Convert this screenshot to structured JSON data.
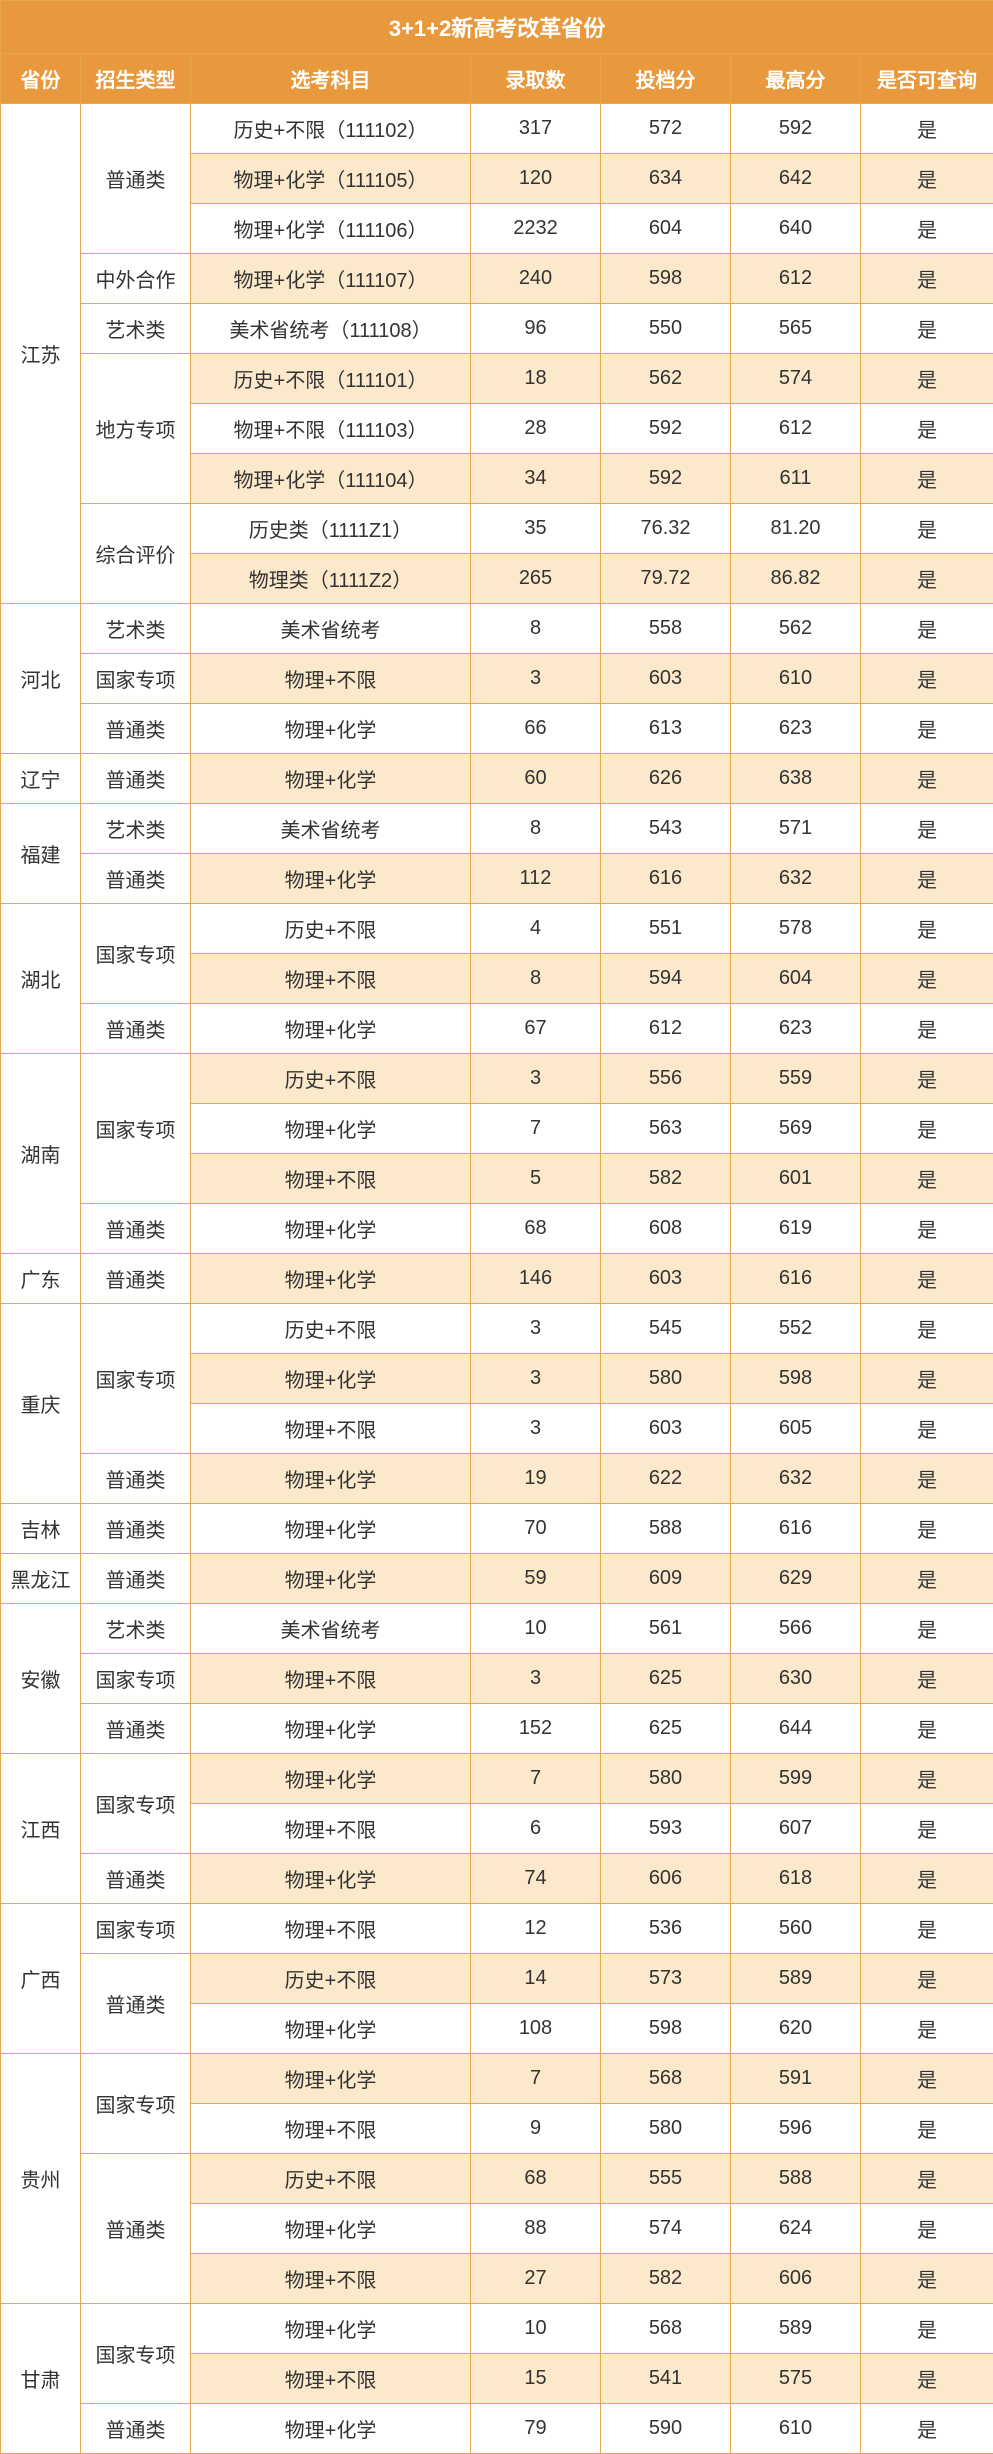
{
  "title": "3+1+2新高考改革省份",
  "headers": [
    "省份",
    "招生类型",
    "选考科目",
    "录取数",
    "投档分",
    "最高分",
    "是否可查询"
  ],
  "colors": {
    "header_bg": "#e8983d",
    "header_text": "#ffffff",
    "border": "#e8a84a",
    "row_white": "#ffffff",
    "row_alt": "#fce9cb",
    "text": "#333333"
  },
  "rows": [
    {
      "province": "江苏",
      "province_span": 10,
      "type": "普通类",
      "type_span": 3,
      "subject": "历史+不限（111102）",
      "admit": "317",
      "score1": "572",
      "score2": "592",
      "query": "是",
      "alt": false
    },
    {
      "subject": "物理+化学（111105）",
      "admit": "120",
      "score1": "634",
      "score2": "642",
      "query": "是",
      "alt": true
    },
    {
      "subject": "物理+化学（111106）",
      "admit": "2232",
      "score1": "604",
      "score2": "640",
      "query": "是",
      "alt": false
    },
    {
      "type": "中外合作",
      "type_span": 1,
      "subject": "物理+化学（111107）",
      "admit": "240",
      "score1": "598",
      "score2": "612",
      "query": "是",
      "alt": true
    },
    {
      "type": "艺术类",
      "type_span": 1,
      "subject": "美术省统考（111108）",
      "admit": "96",
      "score1": "550",
      "score2": "565",
      "query": "是",
      "alt": false
    },
    {
      "type": "地方专项",
      "type_span": 3,
      "subject": "历史+不限（111101）",
      "admit": "18",
      "score1": "562",
      "score2": "574",
      "query": "是",
      "alt": true
    },
    {
      "subject": "物理+不限（111103）",
      "admit": "28",
      "score1": "592",
      "score2": "612",
      "query": "是",
      "alt": false
    },
    {
      "subject": "物理+化学（111104）",
      "admit": "34",
      "score1": "592",
      "score2": "611",
      "query": "是",
      "alt": true
    },
    {
      "type": "综合评价",
      "type_span": 2,
      "subject": "历史类（1111Z1）",
      "admit": "35",
      "score1": "76.32",
      "score2": "81.20",
      "query": "是",
      "alt": false
    },
    {
      "subject": "物理类（1111Z2）",
      "admit": "265",
      "score1": "79.72",
      "score2": "86.82",
      "query": "是",
      "alt": true
    },
    {
      "province": "河北",
      "province_span": 3,
      "type": "艺术类",
      "type_span": 1,
      "subject": "美术省统考",
      "admit": "8",
      "score1": "558",
      "score2": "562",
      "query": "是",
      "alt": false
    },
    {
      "type": "国家专项",
      "type_span": 1,
      "subject": "物理+不限",
      "admit": "3",
      "score1": "603",
      "score2": "610",
      "query": "是",
      "alt": true
    },
    {
      "type": "普通类",
      "type_span": 1,
      "subject": "物理+化学",
      "admit": "66",
      "score1": "613",
      "score2": "623",
      "query": "是",
      "alt": false
    },
    {
      "province": "辽宁",
      "province_span": 1,
      "type": "普通类",
      "type_span": 1,
      "subject": "物理+化学",
      "admit": "60",
      "score1": "626",
      "score2": "638",
      "query": "是",
      "alt": true
    },
    {
      "province": "福建",
      "province_span": 2,
      "type": "艺术类",
      "type_span": 1,
      "subject": "美术省统考",
      "admit": "8",
      "score1": "543",
      "score2": "571",
      "query": "是",
      "alt": false
    },
    {
      "type": "普通类",
      "type_span": 1,
      "subject": "物理+化学",
      "admit": "112",
      "score1": "616",
      "score2": "632",
      "query": "是",
      "alt": true
    },
    {
      "province": "湖北",
      "province_span": 3,
      "type": "国家专项",
      "type_span": 2,
      "subject": "历史+不限",
      "admit": "4",
      "score1": "551",
      "score2": "578",
      "query": "是",
      "alt": false
    },
    {
      "subject": "物理+不限",
      "admit": "8",
      "score1": "594",
      "score2": "604",
      "query": "是",
      "alt": true
    },
    {
      "type": "普通类",
      "type_span": 1,
      "subject": "物理+化学",
      "admit": "67",
      "score1": "612",
      "score2": "623",
      "query": "是",
      "alt": false
    },
    {
      "province": "湖南",
      "province_span": 4,
      "type": "国家专项",
      "type_span": 3,
      "subject": "历史+不限",
      "admit": "3",
      "score1": "556",
      "score2": "559",
      "query": "是",
      "alt": true
    },
    {
      "subject": "物理+化学",
      "admit": "7",
      "score1": "563",
      "score2": "569",
      "query": "是",
      "alt": false
    },
    {
      "subject": "物理+不限",
      "admit": "5",
      "score1": "582",
      "score2": "601",
      "query": "是",
      "alt": true
    },
    {
      "type": "普通类",
      "type_span": 1,
      "subject": "物理+化学",
      "admit": "68",
      "score1": "608",
      "score2": "619",
      "query": "是",
      "alt": false
    },
    {
      "province": "广东",
      "province_span": 1,
      "type": "普通类",
      "type_span": 1,
      "subject": "物理+化学",
      "admit": "146",
      "score1": "603",
      "score2": "616",
      "query": "是",
      "alt": true
    },
    {
      "province": "重庆",
      "province_span": 4,
      "type": "国家专项",
      "type_span": 3,
      "subject": "历史+不限",
      "admit": "3",
      "score1": "545",
      "score2": "552",
      "query": "是",
      "alt": false
    },
    {
      "subject": "物理+化学",
      "admit": "3",
      "score1": "580",
      "score2": "598",
      "query": "是",
      "alt": true
    },
    {
      "subject": "物理+不限",
      "admit": "3",
      "score1": "603",
      "score2": "605",
      "query": "是",
      "alt": false
    },
    {
      "type": "普通类",
      "type_span": 1,
      "subject": "物理+化学",
      "admit": "19",
      "score1": "622",
      "score2": "632",
      "query": "是",
      "alt": true
    },
    {
      "province": "吉林",
      "province_span": 1,
      "type": "普通类",
      "type_span": 1,
      "subject": "物理+化学",
      "admit": "70",
      "score1": "588",
      "score2": "616",
      "query": "是",
      "alt": false
    },
    {
      "province": "黑龙江",
      "province_span": 1,
      "type": "普通类",
      "type_span": 1,
      "subject": "物理+化学",
      "admit": "59",
      "score1": "609",
      "score2": "629",
      "query": "是",
      "alt": true
    },
    {
      "province": "安徽",
      "province_span": 3,
      "type": "艺术类",
      "type_span": 1,
      "subject": "美术省统考",
      "admit": "10",
      "score1": "561",
      "score2": "566",
      "query": "是",
      "alt": false
    },
    {
      "type": "国家专项",
      "type_span": 1,
      "subject": "物理+不限",
      "admit": "3",
      "score1": "625",
      "score2": "630",
      "query": "是",
      "alt": true
    },
    {
      "type": "普通类",
      "type_span": 1,
      "subject": "物理+化学",
      "admit": "152",
      "score1": "625",
      "score2": "644",
      "query": "是",
      "alt": false
    },
    {
      "province": "江西",
      "province_span": 3,
      "type": "国家专项",
      "type_span": 2,
      "subject": "物理+化学",
      "admit": "7",
      "score1": "580",
      "score2": "599",
      "query": "是",
      "alt": true
    },
    {
      "subject": "物理+不限",
      "admit": "6",
      "score1": "593",
      "score2": "607",
      "query": "是",
      "alt": false
    },
    {
      "type": "普通类",
      "type_span": 1,
      "subject": "物理+化学",
      "admit": "74",
      "score1": "606",
      "score2": "618",
      "query": "是",
      "alt": true
    },
    {
      "province": "广西",
      "province_span": 3,
      "type": "国家专项",
      "type_span": 1,
      "subject": "物理+不限",
      "admit": "12",
      "score1": "536",
      "score2": "560",
      "query": "是",
      "alt": false
    },
    {
      "type": "普通类",
      "type_span": 2,
      "subject": "历史+不限",
      "admit": "14",
      "score1": "573",
      "score2": "589",
      "query": "是",
      "alt": true
    },
    {
      "subject": "物理+化学",
      "admit": "108",
      "score1": "598",
      "score2": "620",
      "query": "是",
      "alt": false
    },
    {
      "province": "贵州",
      "province_span": 5,
      "type": "国家专项",
      "type_span": 2,
      "subject": "物理+化学",
      "admit": "7",
      "score1": "568",
      "score2": "591",
      "query": "是",
      "alt": true
    },
    {
      "subject": "物理+不限",
      "admit": "9",
      "score1": "580",
      "score2": "596",
      "query": "是",
      "alt": false
    },
    {
      "type": "普通类",
      "type_span": 3,
      "subject": "历史+不限",
      "admit": "68",
      "score1": "555",
      "score2": "588",
      "query": "是",
      "alt": true
    },
    {
      "subject": "物理+化学",
      "admit": "88",
      "score1": "574",
      "score2": "624",
      "query": "是",
      "alt": false
    },
    {
      "subject": "物理+不限",
      "admit": "27",
      "score1": "582",
      "score2": "606",
      "query": "是",
      "alt": true
    },
    {
      "province": "甘肃",
      "province_span": 3,
      "type": "国家专项",
      "type_span": 2,
      "subject": "物理+化学",
      "admit": "10",
      "score1": "568",
      "score2": "589",
      "query": "是",
      "alt": false
    },
    {
      "subject": "物理+不限",
      "admit": "15",
      "score1": "541",
      "score2": "575",
      "query": "是",
      "alt": true
    },
    {
      "type": "普通类",
      "type_span": 1,
      "subject": "物理+化学",
      "admit": "79",
      "score1": "590",
      "score2": "610",
      "query": "是",
      "alt": false
    }
  ]
}
